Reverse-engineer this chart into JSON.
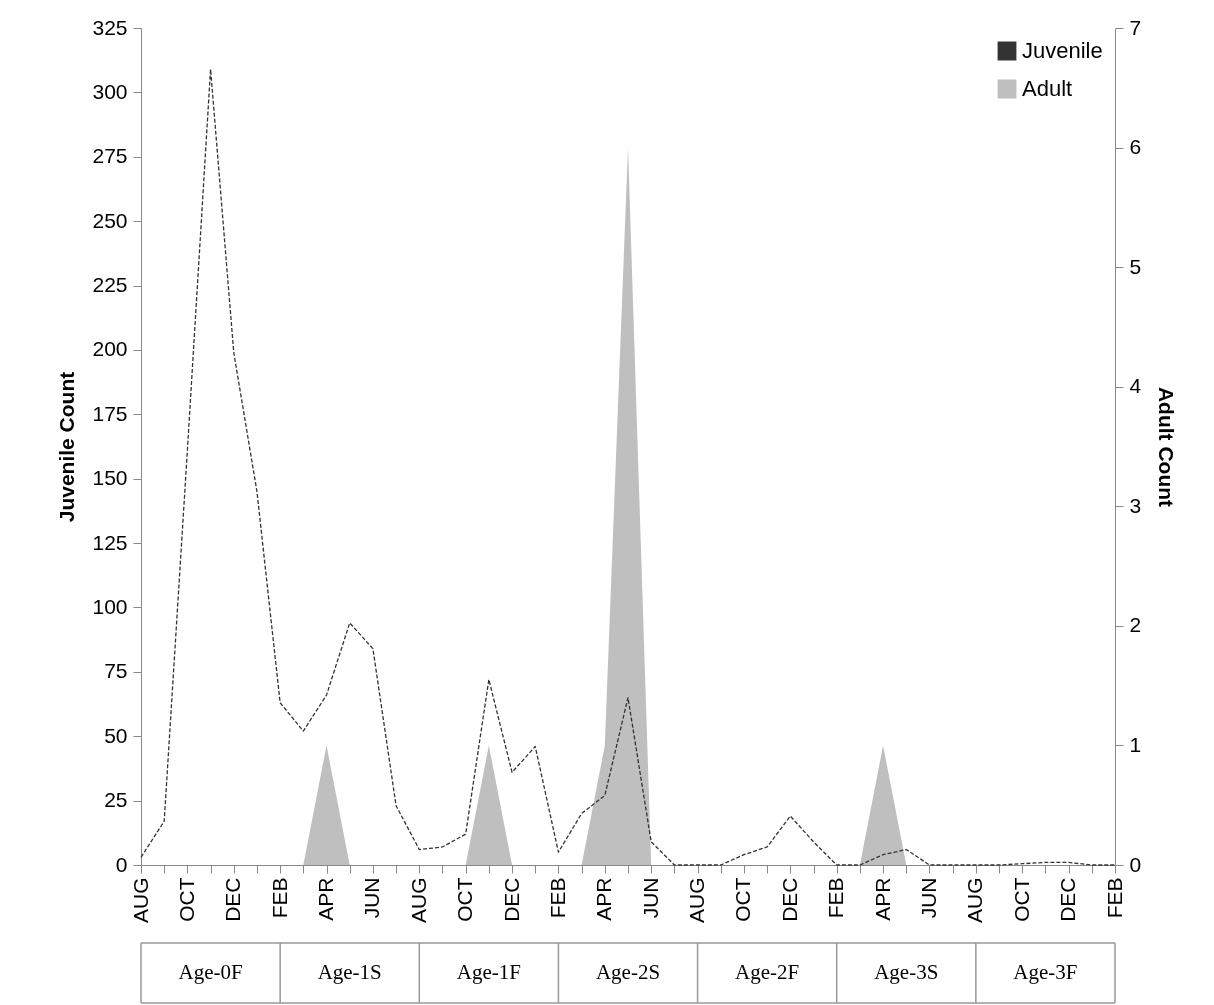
{
  "chart_data": {
    "type": "line",
    "categories": [
      "AUG",
      null,
      "OCT",
      null,
      "DEC",
      null,
      "FEB",
      null,
      "APR",
      null,
      "JUN",
      null,
      "AUG",
      null,
      "OCT",
      null,
      "DEC",
      null,
      "FEB",
      null,
      "APR",
      null,
      "JUN",
      null,
      "AUG",
      null,
      "OCT",
      null,
      "DEC",
      null,
      "FEB",
      null,
      "APR",
      null,
      "JUN",
      null,
      "AUG",
      null,
      "OCT",
      null,
      "DEC",
      null,
      "FEB"
    ],
    "series": [
      {
        "name": "Juvenile",
        "type": "line",
        "color": "#333333",
        "line_style": "dashed",
        "values": [
          3,
          17,
          161,
          309,
          199,
          145,
          63,
          52,
          66,
          94,
          84,
          23,
          6,
          7,
          12,
          72,
          36,
          46,
          5,
          20,
          27,
          65,
          9,
          0,
          0,
          0,
          4,
          7,
          19,
          9,
          0,
          0,
          4,
          6,
          0,
          0,
          0,
          0,
          0.5,
          1,
          1,
          0,
          0
        ]
      },
      {
        "name": "Adult",
        "type": "area",
        "axis": "y2",
        "color": "#bfbfbf",
        "values": [
          0,
          0,
          0,
          0,
          0,
          0,
          0,
          0,
          1,
          0,
          0,
          0,
          0,
          0,
          0,
          1,
          0,
          0,
          0,
          0,
          1,
          6,
          0,
          0,
          0,
          0,
          0,
          0,
          0,
          0,
          0,
          0,
          1,
          0,
          0,
          0,
          0,
          0,
          0,
          0,
          0,
          0,
          0
        ]
      }
    ],
    "ylabel": "Juvenile Count",
    "y2label": "Adult Count",
    "ylim": [
      0,
      325
    ],
    "yticks": [
      0,
      25,
      50,
      75,
      100,
      125,
      150,
      175,
      200,
      225,
      250,
      275,
      300,
      325
    ],
    "y2lim": [
      0,
      7
    ],
    "y2ticks": [
      0,
      1,
      2,
      3,
      4,
      5,
      6,
      7
    ],
    "annotations": [
      "Age-0F",
      "Age-1S",
      "Age-1F",
      "Age-2S",
      "Age-2F",
      "Age-3S",
      "Age-3F"
    ],
    "legend": "top right",
    "grid": false,
    "marker": "none"
  }
}
